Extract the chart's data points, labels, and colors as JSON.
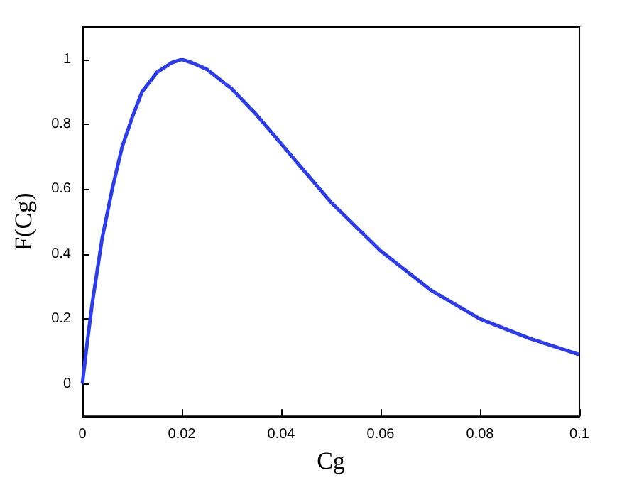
{
  "chart_data": {
    "type": "line",
    "xlabel": "Cg",
    "ylabel": "F(Cg)",
    "x": [
      0,
      0.001,
      0.002,
      0.004,
      0.006,
      0.008,
      0.01,
      0.012,
      0.015,
      0.018,
      0.02,
      0.022,
      0.025,
      0.03,
      0.035,
      0.04,
      0.045,
      0.05,
      0.06,
      0.07,
      0.08,
      0.09,
      0.1
    ],
    "series": [
      {
        "color": "#2b3bf0",
        "values": [
          0,
          0.13,
          0.25,
          0.45,
          0.6,
          0.73,
          0.82,
          0.9,
          0.96,
          0.99,
          1,
          0.99,
          0.97,
          0.91,
          0.83,
          0.74,
          0.65,
          0.56,
          0.41,
          0.29,
          0.2,
          0.14,
          0.09
        ]
      }
    ],
    "xlim": [
      0,
      0.1
    ],
    "xticks": [
      0,
      0.02,
      0.04,
      0.06,
      0.08,
      0.1
    ],
    "ylim": [
      -0.1,
      1.1
    ],
    "yticks": [
      0,
      0.2,
      0.4,
      0.6,
      0.8,
      1
    ],
    "grid": false,
    "marker": "none",
    "line_style": "solid"
  }
}
